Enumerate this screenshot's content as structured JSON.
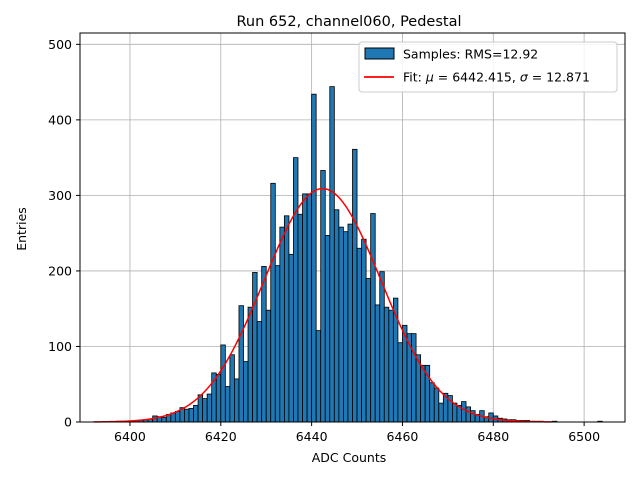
{
  "chart_data": {
    "type": "bar",
    "title": "Run 652, channel060, Pedestal",
    "xlabel": "ADC Counts",
    "ylabel": "Entries",
    "xlim": [
      6389,
      6509
    ],
    "ylim": [
      0,
      515
    ],
    "xticks": [
      6400,
      6420,
      6440,
      6460,
      6480,
      6500
    ],
    "yticks": [
      0,
      100,
      200,
      300,
      400,
      500
    ],
    "grid": true,
    "legend_position": "top-right",
    "bin_width": 1,
    "bins": [
      [
        6397,
        1
      ],
      [
        6398,
        1
      ],
      [
        6399,
        1
      ],
      [
        6400,
        1
      ],
      [
        6401,
        2
      ],
      [
        6402,
        2
      ],
      [
        6403,
        3
      ],
      [
        6404,
        4
      ],
      [
        6405,
        8
      ],
      [
        6406,
        7
      ],
      [
        6407,
        6
      ],
      [
        6408,
        10
      ],
      [
        6409,
        12
      ],
      [
        6410,
        14
      ],
      [
        6411,
        19
      ],
      [
        6412,
        17
      ],
      [
        6413,
        18
      ],
      [
        6414,
        22
      ],
      [
        6415,
        36
      ],
      [
        6416,
        31
      ],
      [
        6417,
        37
      ],
      [
        6418,
        65
      ],
      [
        6419,
        63
      ],
      [
        6420,
        102
      ],
      [
        6421,
        47
      ],
      [
        6422,
        89
      ],
      [
        6423,
        57
      ],
      [
        6424,
        154
      ],
      [
        6425,
        80
      ],
      [
        6426,
        152
      ],
      [
        6427,
        198
      ],
      [
        6428,
        133
      ],
      [
        6429,
        206
      ],
      [
        6430,
        148
      ],
      [
        6431,
        316
      ],
      [
        6432,
        207
      ],
      [
        6433,
        258
      ],
      [
        6434,
        273
      ],
      [
        6435,
        222
      ],
      [
        6436,
        350
      ],
      [
        6437,
        275
      ],
      [
        6438,
        302
      ],
      [
        6439,
        302
      ],
      [
        6440,
        434
      ],
      [
        6441,
        121
      ],
      [
        6442,
        333
      ],
      [
        6443,
        247
      ],
      [
        6444,
        444
      ],
      [
        6445,
        281
      ],
      [
        6446,
        258
      ],
      [
        6447,
        252
      ],
      [
        6448,
        262
      ],
      [
        6449,
        361
      ],
      [
        6450,
        230
      ],
      [
        6451,
        242
      ],
      [
        6452,
        190
      ],
      [
        6453,
        276
      ],
      [
        6454,
        155
      ],
      [
        6455,
        199
      ],
      [
        6456,
        152
      ],
      [
        6457,
        148
      ],
      [
        6458,
        164
      ],
      [
        6459,
        105
      ],
      [
        6460,
        128
      ],
      [
        6461,
        117
      ],
      [
        6462,
        117
      ],
      [
        6463,
        89
      ],
      [
        6464,
        75
      ],
      [
        6465,
        75
      ],
      [
        6466,
        52
      ],
      [
        6467,
        45
      ],
      [
        6468,
        25
      ],
      [
        6469,
        38
      ],
      [
        6470,
        35
      ],
      [
        6471,
        25
      ],
      [
        6472,
        22
      ],
      [
        6473,
        27
      ],
      [
        6474,
        20
      ],
      [
        6475,
        15
      ],
      [
        6476,
        10
      ],
      [
        6477,
        15
      ],
      [
        6478,
        7
      ],
      [
        6479,
        12
      ],
      [
        6480,
        8
      ],
      [
        6481,
        5
      ],
      [
        6482,
        4
      ],
      [
        6483,
        3
      ],
      [
        6484,
        3
      ],
      [
        6485,
        2
      ],
      [
        6486,
        2
      ],
      [
        6487,
        2
      ],
      [
        6488,
        1
      ],
      [
        6489,
        1
      ],
      [
        6490,
        1
      ],
      [
        6493,
        1
      ],
      [
        6503,
        1
      ]
    ],
    "fit": {
      "mu": 6442.415,
      "sigma": 12.871,
      "amplitude": 309,
      "x_range": [
        6392,
        6493
      ]
    },
    "colors": {
      "bars": "#1f77b4",
      "bar_edge": "#000000",
      "fit": "#ff0000",
      "grid": "#b0b0b0"
    },
    "legend": {
      "samples_label": "Samples: RMS=12.92",
      "fit_label_prefix": "Fit: ",
      "fit_mu_symbol": "μ",
      "fit_mu_text": " = 6442.415, ",
      "fit_sigma_symbol": "σ",
      "fit_sigma_text": " = 12.871"
    }
  }
}
